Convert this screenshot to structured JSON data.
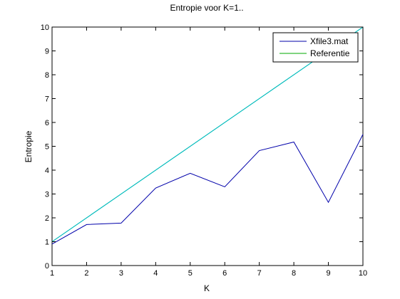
{
  "chart_data": {
    "type": "line",
    "title": "Entropie voor K=1..",
    "xlabel": "K",
    "ylabel": "Entropie",
    "xlim": [
      1,
      10
    ],
    "ylim": [
      0,
      10
    ],
    "x_ticks": [
      1,
      2,
      3,
      4,
      5,
      6,
      7,
      8,
      9,
      10
    ],
    "y_ticks": [
      0,
      1,
      2,
      3,
      4,
      5,
      6,
      7,
      8,
      9,
      10
    ],
    "grid": false,
    "legend_position": "top-right",
    "x": [
      1,
      2,
      3,
      4,
      5,
      6,
      7,
      8,
      9,
      10
    ],
    "series": [
      {
        "name": "Xfile3.mat",
        "color": "#0000aa",
        "values": [
          0.9,
          1.72,
          1.78,
          3.25,
          3.87,
          3.3,
          4.82,
          5.18,
          2.65,
          5.5
        ]
      },
      {
        "name": "Referentie",
        "color": "#00aa00",
        "values": [
          1,
          2,
          3,
          4,
          5,
          6,
          7,
          8,
          9,
          10
        ]
      }
    ],
    "extra_lines": [
      {
        "color": "#00bbbb",
        "x": [
          1,
          10
        ],
        "values": [
          1,
          10
        ]
      }
    ]
  }
}
